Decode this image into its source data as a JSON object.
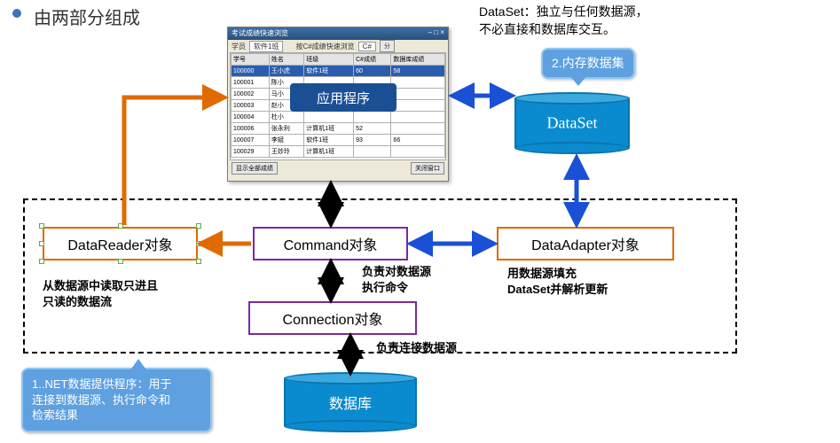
{
  "colors": {
    "bullet": "#3b74b8",
    "title_text": "#333333",
    "blue_dark": "#1b4f93",
    "blue_cyl_top": "#3ba8df",
    "blue_cyl_body": "#0a8bcf",
    "blue_cyl_edge": "#0a74ad",
    "orange": "#e06a00",
    "purple": "#7a2aa0",
    "blue_arrow": "#1a50d6",
    "black": "#000000",
    "callout_bg": "#5ea0e0",
    "callout_border": "#8ec7f2",
    "app_overlay": "#1b4f93"
  },
  "title": "由两部分组成",
  "dataset_note": "DataSet：独立与任何数据源，\n不必直接和数据库交互。",
  "callout_memory": "2.内存数据集",
  "callout_provider": "1..NET数据提供程序：用于\n连接到数据源、执行命令和\n检索结果",
  "boxes": {
    "datareader": "DataReader对象",
    "command": "Command对象",
    "connection": "Connection对象",
    "dataadapter": "DataAdapter对象"
  },
  "cylinders": {
    "dataset": "DataSet",
    "database": "数据库"
  },
  "notes": {
    "command_desc": "负责对数据源\n执行命令",
    "connection_desc": "负责连接数据源",
    "datareader_desc": "从数据源中读取只进且\n只读的数据流",
    "dataadapter_desc": "用数据源填充\nDataSet并解析更新"
  },
  "app_window": {
    "title": "考试成绩快速浏览",
    "toolbar_left_label": "学员",
    "toolbar_left_value": "软件1班",
    "toolbar_right_label": "按C#成绩快速浏览",
    "toolbar_right_value": "C#",
    "toolbar_btn": "分",
    "overlay": "应用程序",
    "headers": [
      "学号",
      "姓名",
      "班级",
      "C#成绩",
      "数据库成绩"
    ],
    "rows": [
      {
        "cells": [
          "100000",
          "王小虎",
          "软件1班",
          "60",
          "58"
        ],
        "selected": true
      },
      {
        "cells": [
          "100001",
          "陈小",
          "",
          "",
          ""
        ]
      },
      {
        "cells": [
          "100002",
          "马小",
          "",
          "",
          ""
        ]
      },
      {
        "cells": [
          "100003",
          "赵小",
          "",
          "",
          ""
        ]
      },
      {
        "cells": [
          "100004",
          "杜小",
          "",
          "",
          ""
        ]
      },
      {
        "cells": [
          "100006",
          "张永利",
          "计算机1班",
          "52",
          ""
        ]
      },
      {
        "cells": [
          "100007",
          "李斌",
          "软件1班",
          "93",
          "66"
        ]
      },
      {
        "cells": [
          "100029",
          "王妙玲",
          "计算机1班",
          "",
          ""
        ]
      }
    ],
    "footer_left": "显示全部成绩",
    "footer_right": "关闭窗口"
  },
  "arrows": {
    "stroke_width": 5,
    "stroke_width_thin": 4,
    "head_len": 12,
    "head_w": 9
  }
}
